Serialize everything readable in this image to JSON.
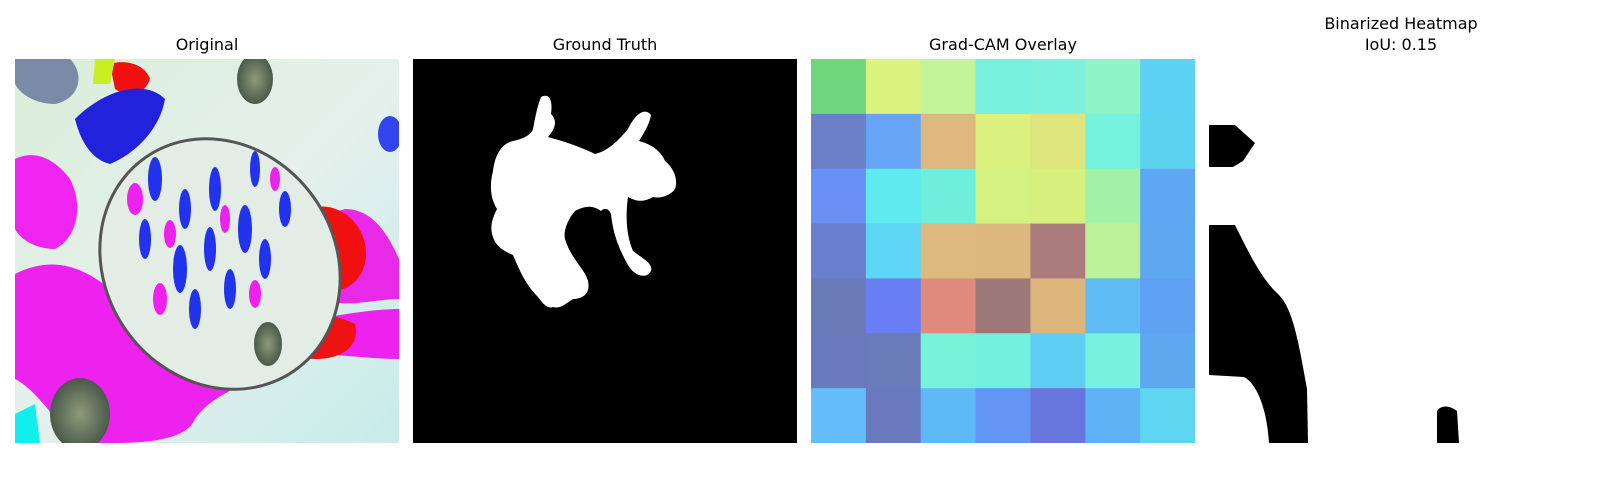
{
  "panels": [
    {
      "title": "Original"
    },
    {
      "title": "Ground Truth"
    },
    {
      "title": "Grad-CAM Overlay"
    },
    {
      "title": "Binarized Heatmap",
      "subtitle": "IoU: 0.15"
    }
  ],
  "chart_data": {
    "type": "heatmap",
    "grid_rows": 7,
    "grid_cols": 7,
    "overlay_cells": [
      [
        "#6fd67d",
        "#dcf37e",
        "#c3f39a",
        "#78f2de",
        "#7cf1de",
        "#8ff3c8",
        "#5dd2f2"
      ],
      [
        "#6b7ec8",
        "#66a5f6",
        "#deb87e",
        "#dcf07f",
        "#dde57c",
        "#75f2de",
        "#5dd3f2"
      ],
      [
        "#6990f4",
        "#5eeaef",
        "#70eedc",
        "#d4f282",
        "#d6f07e",
        "#a2f1a8",
        "#5ea7f2"
      ],
      [
        "#6a7fcc",
        "#5dd5f5",
        "#dcb97e",
        "#dcb87e",
        "#ab7c7c",
        "#bcf19a",
        "#5ea8f2"
      ],
      [
        "#6a79b8",
        "#6a7ef3",
        "#de8a7c",
        "#9d7878",
        "#dcb57c",
        "#5fbcf5",
        "#5ea0f2"
      ],
      [
        "#6a79bc",
        "#6a7bba",
        "#76f2d8",
        "#72f0de",
        "#5ecdf3",
        "#76f2df",
        "#5ea8ef"
      ],
      [
        "#64bdf8",
        "#6a79bb",
        "#5eb9f6",
        "#6396f4",
        "#6676dc",
        "#5eb2f5",
        "#5ed6f1"
      ]
    ],
    "iou": 0.15
  }
}
